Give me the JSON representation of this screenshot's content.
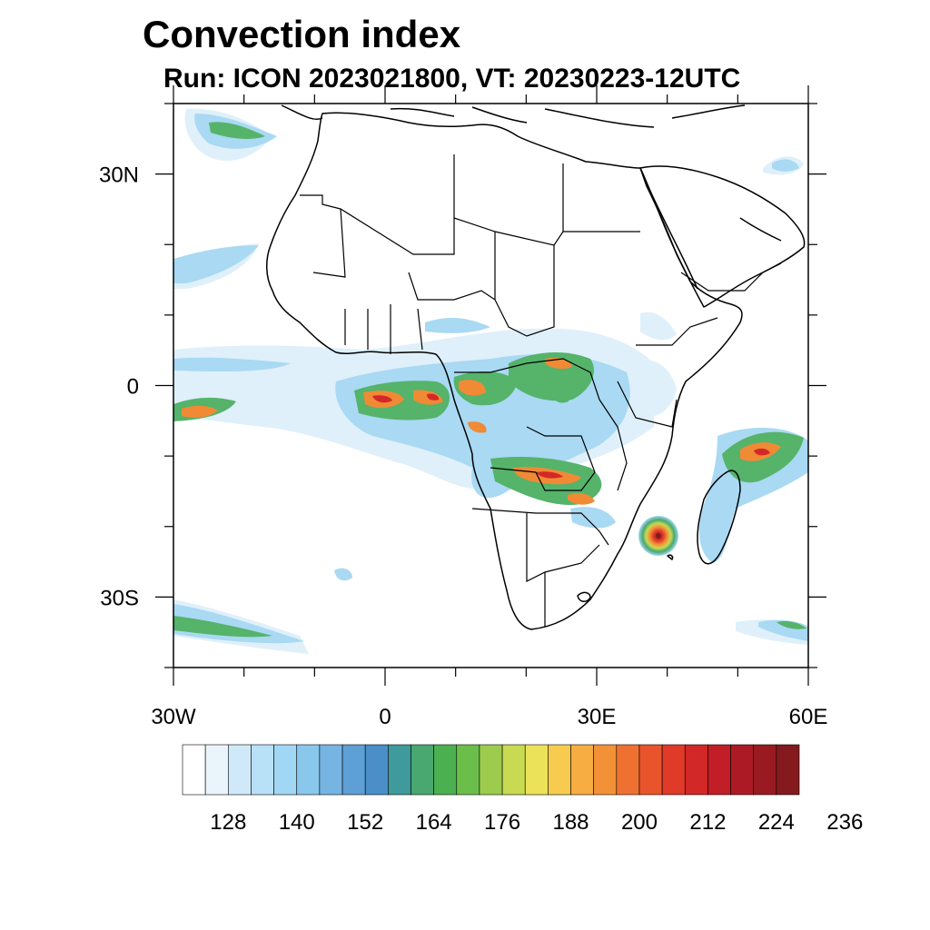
{
  "header": {
    "title": "Convection index",
    "subtitle": "Run: ICON 2023021800,  VT: 20230223-12UTC"
  },
  "map": {
    "extent": {
      "lon_min": -30,
      "lon_max": 60,
      "lat_min": -40,
      "lat_max": 40
    },
    "lon_ticks": [
      {
        "value": -30,
        "label": "30W"
      },
      {
        "value": 0,
        "label": "0"
      },
      {
        "value": 30,
        "label": "30E"
      },
      {
        "value": 60,
        "label": "60E"
      }
    ],
    "lat_ticks": [
      {
        "value": 30,
        "label": "30N"
      },
      {
        "value": 0,
        "label": "0"
      },
      {
        "value": -30,
        "label": "30S"
      }
    ]
  },
  "colorbar": {
    "colors": [
      "#ffffff",
      "#e9f5fb",
      "#cfe9f8",
      "#b8e0f6",
      "#a1d7f4",
      "#8ac7ec",
      "#76b4e2",
      "#5e9fd5",
      "#4a8fc8",
      "#3f9a9b",
      "#48a86f",
      "#4bb04f",
      "#6cbe4a",
      "#9ccb4e",
      "#c8d952",
      "#ece25a",
      "#f7cb4d",
      "#f7ad41",
      "#f39137",
      "#ef7131",
      "#e9542c",
      "#e03a29",
      "#d32828",
      "#c11e27",
      "#ac1b25",
      "#991b21",
      "#841a1e"
    ],
    "tick_labels": [
      "128",
      "140",
      "152",
      "164",
      "176",
      "188",
      "200",
      "212",
      "224",
      "236"
    ]
  }
}
